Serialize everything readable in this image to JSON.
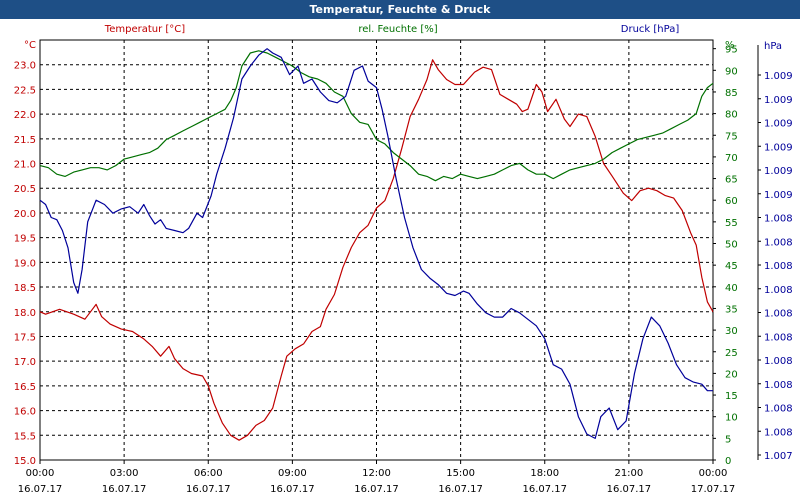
{
  "window": {
    "title": "Temperatur, Feuchte & Druck"
  },
  "chart_data": {
    "type": "line",
    "title": "Temperatur, Feuchte & Druck",
    "x_ticks": [
      {
        "time": "00:00",
        "date": "16.07.17"
      },
      {
        "time": "03:00",
        "date": "16.07.17"
      },
      {
        "time": "06:00",
        "date": "16.07.17"
      },
      {
        "time": "09:00",
        "date": "16.07.17"
      },
      {
        "time": "12:00",
        "date": "16.07.17"
      },
      {
        "time": "15:00",
        "date": "16.07.17"
      },
      {
        "time": "18:00",
        "date": "16.07.17"
      },
      {
        "time": "21:00",
        "date": "16.07.17"
      },
      {
        "time": "00:00",
        "date": "17.07.17"
      }
    ],
    "axes": {
      "temperature": {
        "label": "Temperatur [°C]",
        "unit": "°C",
        "range": [
          15.0,
          23.5
        ],
        "color": "#c00000",
        "ticks": [
          "15.0",
          "15.5",
          "16.0",
          "16.5",
          "17.0",
          "17.5",
          "18.0",
          "18.5",
          "19.0",
          "19.5",
          "20.0",
          "20.5",
          "21.0",
          "21.5",
          "22.0",
          "22.5",
          "23.0"
        ]
      },
      "humidity": {
        "label": "rel. Feuchte [%]",
        "unit": "%",
        "range": [
          0,
          97
        ],
        "color": "#007000",
        "ticks": [
          "0",
          "5",
          "10",
          "15",
          "20",
          "25",
          "30",
          "35",
          "40",
          "45",
          "50",
          "55",
          "60",
          "65",
          "70",
          "75",
          "80",
          "85",
          "90",
          "95"
        ]
      },
      "pressure": {
        "label": "Druck [hPa]",
        "unit": "hPa",
        "color": "#00009a",
        "ticks": [
          "1.007",
          "1.008",
          "1.008",
          "1.008",
          "1.008",
          "1.008",
          "1.008",
          "1.008",
          "1.008",
          "1.008",
          "1.008",
          "1.009",
          "1.009",
          "1.009",
          "1.009",
          "1.009",
          "1.009"
        ]
      }
    },
    "series": [
      {
        "name": "Temperatur",
        "axis": "temperature",
        "color": "#c00000",
        "points": [
          [
            0,
            18.0
          ],
          [
            0.2,
            17.95
          ],
          [
            0.7,
            18.05
          ],
          [
            1.2,
            17.95
          ],
          [
            1.6,
            17.85
          ],
          [
            1.8,
            18.0
          ],
          [
            2.0,
            18.15
          ],
          [
            2.2,
            17.9
          ],
          [
            2.5,
            17.75
          ],
          [
            2.9,
            17.65
          ],
          [
            3.3,
            17.6
          ],
          [
            3.7,
            17.45
          ],
          [
            4.0,
            17.3
          ],
          [
            4.3,
            17.1
          ],
          [
            4.6,
            17.3
          ],
          [
            4.8,
            17.05
          ],
          [
            5.1,
            16.85
          ],
          [
            5.4,
            16.75
          ],
          [
            5.8,
            16.7
          ],
          [
            6.0,
            16.5
          ],
          [
            6.2,
            16.15
          ],
          [
            6.5,
            15.75
          ],
          [
            6.8,
            15.5
          ],
          [
            7.1,
            15.4
          ],
          [
            7.4,
            15.5
          ],
          [
            7.7,
            15.7
          ],
          [
            8.0,
            15.8
          ],
          [
            8.3,
            16.05
          ],
          [
            8.6,
            16.7
          ],
          [
            8.8,
            17.1
          ],
          [
            9.1,
            17.25
          ],
          [
            9.4,
            17.35
          ],
          [
            9.7,
            17.6
          ],
          [
            10.0,
            17.7
          ],
          [
            10.2,
            18.05
          ],
          [
            10.5,
            18.35
          ],
          [
            10.8,
            18.9
          ],
          [
            11.1,
            19.3
          ],
          [
            11.4,
            19.6
          ],
          [
            11.7,
            19.75
          ],
          [
            12.0,
            20.1
          ],
          [
            12.3,
            20.25
          ],
          [
            12.6,
            20.7
          ],
          [
            12.9,
            21.3
          ],
          [
            13.2,
            21.95
          ],
          [
            13.5,
            22.3
          ],
          [
            13.8,
            22.7
          ],
          [
            14.0,
            23.1
          ],
          [
            14.2,
            22.9
          ],
          [
            14.5,
            22.7
          ],
          [
            14.8,
            22.6
          ],
          [
            15.1,
            22.6
          ],
          [
            15.5,
            22.85
          ],
          [
            15.8,
            22.95
          ],
          [
            16.1,
            22.9
          ],
          [
            16.4,
            22.4
          ],
          [
            16.7,
            22.3
          ],
          [
            17.0,
            22.2
          ],
          [
            17.2,
            22.05
          ],
          [
            17.4,
            22.1
          ],
          [
            17.7,
            22.6
          ],
          [
            17.9,
            22.45
          ],
          [
            18.1,
            22.05
          ],
          [
            18.4,
            22.3
          ],
          [
            18.7,
            21.9
          ],
          [
            18.9,
            21.75
          ],
          [
            19.2,
            22.0
          ],
          [
            19.5,
            21.95
          ],
          [
            19.8,
            21.55
          ],
          [
            20.1,
            21.0
          ],
          [
            20.4,
            20.75
          ],
          [
            20.8,
            20.4
          ],
          [
            21.1,
            20.25
          ],
          [
            21.4,
            20.45
          ],
          [
            21.7,
            20.5
          ],
          [
            22.0,
            20.45
          ],
          [
            22.3,
            20.35
          ],
          [
            22.6,
            20.3
          ],
          [
            22.9,
            20.05
          ],
          [
            23.2,
            19.6
          ],
          [
            23.4,
            19.35
          ],
          [
            23.6,
            18.7
          ],
          [
            23.8,
            18.2
          ],
          [
            24.0,
            18.0
          ]
        ]
      },
      {
        "name": "rel. Feuchte",
        "axis": "humidity",
        "color": "#007000",
        "points": [
          [
            0,
            68
          ],
          [
            0.3,
            67.5
          ],
          [
            0.6,
            66
          ],
          [
            0.9,
            65.5
          ],
          [
            1.2,
            66.5
          ],
          [
            1.5,
            67
          ],
          [
            1.8,
            67.5
          ],
          [
            2.1,
            67.5
          ],
          [
            2.4,
            67
          ],
          [
            2.7,
            68
          ],
          [
            3.0,
            69.5
          ],
          [
            3.3,
            70
          ],
          [
            3.6,
            70.5
          ],
          [
            3.9,
            71
          ],
          [
            4.2,
            72
          ],
          [
            4.5,
            74
          ],
          [
            4.8,
            75
          ],
          [
            5.1,
            76
          ],
          [
            5.4,
            77
          ],
          [
            5.7,
            78
          ],
          [
            6.0,
            79
          ],
          [
            6.3,
            80
          ],
          [
            6.6,
            81
          ],
          [
            6.8,
            83
          ],
          [
            7.0,
            86
          ],
          [
            7.2,
            91
          ],
          [
            7.5,
            94
          ],
          [
            7.8,
            94.5
          ],
          [
            8.1,
            94
          ],
          [
            8.4,
            93
          ],
          [
            8.7,
            92
          ],
          [
            9.0,
            91
          ],
          [
            9.3,
            89.5
          ],
          [
            9.6,
            88.5
          ],
          [
            9.9,
            88
          ],
          [
            10.2,
            87
          ],
          [
            10.5,
            85
          ],
          [
            10.8,
            84
          ],
          [
            11.1,
            80
          ],
          [
            11.4,
            78
          ],
          [
            11.7,
            77.5
          ],
          [
            12.0,
            74
          ],
          [
            12.3,
            73
          ],
          [
            12.6,
            71
          ],
          [
            12.9,
            69.5
          ],
          [
            13.2,
            68
          ],
          [
            13.5,
            66
          ],
          [
            13.8,
            65.5
          ],
          [
            14.1,
            64.5
          ],
          [
            14.4,
            65.5
          ],
          [
            14.7,
            65
          ],
          [
            15.0,
            66
          ],
          [
            15.3,
            65.5
          ],
          [
            15.6,
            65
          ],
          [
            15.9,
            65.5
          ],
          [
            16.2,
            66
          ],
          [
            16.5,
            67
          ],
          [
            16.8,
            68
          ],
          [
            17.1,
            68.5
          ],
          [
            17.4,
            67
          ],
          [
            17.7,
            66
          ],
          [
            18.0,
            66
          ],
          [
            18.3,
            65
          ],
          [
            18.6,
            66
          ],
          [
            18.9,
            67
          ],
          [
            19.2,
            67.5
          ],
          [
            19.5,
            68
          ],
          [
            19.8,
            68.5
          ],
          [
            20.1,
            69.5
          ],
          [
            20.4,
            71
          ],
          [
            20.7,
            72
          ],
          [
            21.0,
            73
          ],
          [
            21.3,
            74
          ],
          [
            21.6,
            74.5
          ],
          [
            21.9,
            75
          ],
          [
            22.2,
            75.5
          ],
          [
            22.5,
            76.5
          ],
          [
            22.8,
            77.5
          ],
          [
            23.1,
            78.5
          ],
          [
            23.4,
            80
          ],
          [
            23.6,
            84
          ],
          [
            23.8,
            86
          ],
          [
            24.0,
            87
          ]
        ]
      },
      {
        "name": "Druck",
        "axis": "pressure",
        "color": "#00009a",
        "points": [
          [
            0,
            60
          ],
          [
            0.2,
            59
          ],
          [
            0.4,
            56
          ],
          [
            0.6,
            55.5
          ],
          [
            0.8,
            53
          ],
          [
            1.0,
            49
          ],
          [
            1.2,
            41
          ],
          [
            1.35,
            38.5
          ],
          [
            1.5,
            44
          ],
          [
            1.7,
            55
          ],
          [
            2.0,
            60
          ],
          [
            2.3,
            59
          ],
          [
            2.6,
            57
          ],
          [
            2.9,
            58
          ],
          [
            3.2,
            58.5
          ],
          [
            3.5,
            57
          ],
          [
            3.7,
            59
          ],
          [
            3.9,
            56.5
          ],
          [
            4.1,
            54.5
          ],
          [
            4.3,
            55.5
          ],
          [
            4.5,
            53.5
          ],
          [
            4.8,
            53
          ],
          [
            5.1,
            52.5
          ],
          [
            5.3,
            53.5
          ],
          [
            5.6,
            57
          ],
          [
            5.8,
            56
          ],
          [
            6.1,
            61
          ],
          [
            6.3,
            66
          ],
          [
            6.6,
            72
          ],
          [
            6.9,
            79
          ],
          [
            7.2,
            88
          ],
          [
            7.5,
            91
          ],
          [
            7.8,
            93.5
          ],
          [
            8.1,
            95
          ],
          [
            8.3,
            94
          ],
          [
            8.6,
            93
          ],
          [
            8.9,
            89
          ],
          [
            9.2,
            91
          ],
          [
            9.4,
            87
          ],
          [
            9.7,
            88
          ],
          [
            10.0,
            85
          ],
          [
            10.3,
            83
          ],
          [
            10.6,
            82.5
          ],
          [
            10.9,
            84
          ],
          [
            11.2,
            90
          ],
          [
            11.5,
            91
          ],
          [
            11.7,
            87.5
          ],
          [
            12.0,
            86
          ],
          [
            12.2,
            81
          ],
          [
            12.4,
            75
          ],
          [
            12.7,
            65
          ],
          [
            13.0,
            56
          ],
          [
            13.3,
            49
          ],
          [
            13.6,
            44
          ],
          [
            13.9,
            42
          ],
          [
            14.2,
            40.5
          ],
          [
            14.5,
            38.5
          ],
          [
            14.8,
            38
          ],
          [
            15.1,
            39
          ],
          [
            15.3,
            38.5
          ],
          [
            15.6,
            36
          ],
          [
            15.9,
            34
          ],
          [
            16.2,
            33
          ],
          [
            16.5,
            33
          ],
          [
            16.8,
            35
          ],
          [
            17.1,
            34
          ],
          [
            17.4,
            32.5
          ],
          [
            17.7,
            31
          ],
          [
            18.0,
            28
          ],
          [
            18.3,
            22
          ],
          [
            18.6,
            21
          ],
          [
            18.9,
            17.5
          ],
          [
            19.2,
            10
          ],
          [
            19.5,
            6
          ],
          [
            19.8,
            5
          ],
          [
            20.0,
            10
          ],
          [
            20.3,
            12
          ],
          [
            20.6,
            7
          ],
          [
            20.9,
            9
          ],
          [
            21.2,
            20
          ],
          [
            21.5,
            28
          ],
          [
            21.8,
            33
          ],
          [
            22.1,
            31
          ],
          [
            22.4,
            27
          ],
          [
            22.7,
            22
          ],
          [
            23.0,
            19
          ],
          [
            23.3,
            18
          ],
          [
            23.6,
            17.5
          ],
          [
            23.8,
            16
          ],
          [
            24.0,
            16
          ]
        ]
      }
    ]
  }
}
